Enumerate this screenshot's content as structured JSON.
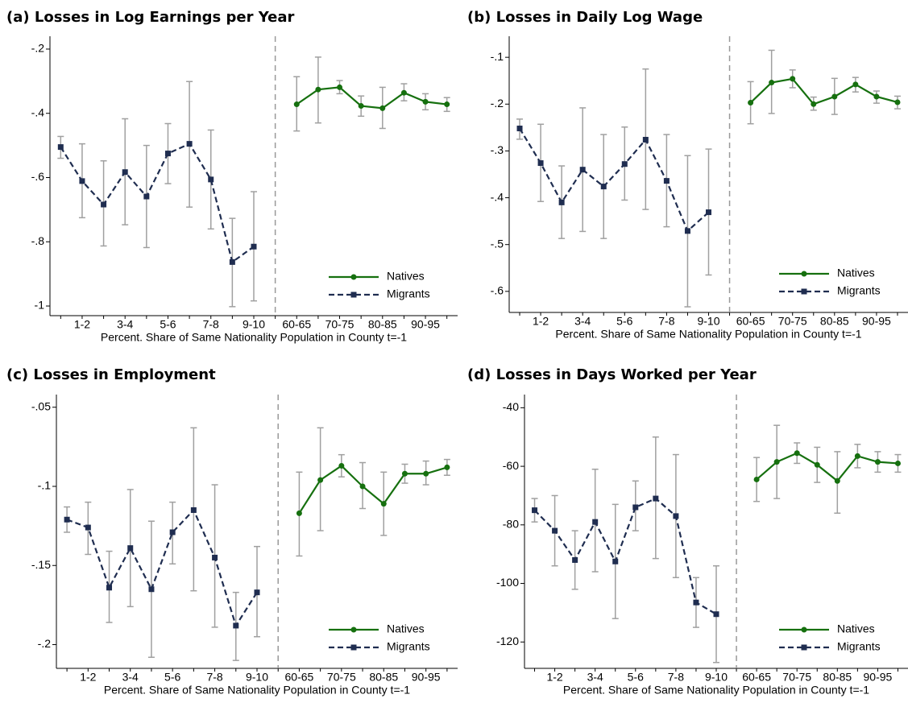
{
  "chart_data": [
    {
      "type": "line",
      "title": "(a) Losses in Log Earnings per Year",
      "xlabel": "Percent. Share of Same Nationality Population in County t=-1",
      "categories": [
        null,
        "1-2",
        null,
        "3-4",
        null,
        "5-6",
        null,
        "7-8",
        null,
        "9-10",
        null,
        "60-65",
        null,
        "70-75",
        null,
        "80-85",
        null,
        "90-95",
        null
      ],
      "series": [
        {
          "name": "Natives",
          "color": "#16700f",
          "style": "solid",
          "marker": "circle",
          "values": [
            null,
            null,
            null,
            null,
            null,
            null,
            null,
            null,
            null,
            null,
            null,
            -0.372,
            -0.326,
            -0.319,
            -0.377,
            -0.384,
            -0.336,
            -0.364,
            -0.372
          ],
          "upper": [
            null,
            null,
            null,
            null,
            null,
            null,
            null,
            null,
            null,
            null,
            null,
            -0.286,
            -0.225,
            -0.298,
            -0.346,
            -0.319,
            -0.308,
            -0.339,
            -0.351
          ],
          "lower": [
            null,
            null,
            null,
            null,
            null,
            null,
            null,
            null,
            null,
            null,
            null,
            -0.455,
            -0.43,
            -0.339,
            -0.409,
            -0.447,
            -0.361,
            -0.389,
            -0.394
          ]
        },
        {
          "name": "Migrants",
          "color": "#1f2d50",
          "style": "dashed",
          "marker": "square",
          "values": [
            -0.505,
            -0.611,
            -0.684,
            -0.583,
            -0.659,
            -0.525,
            -0.495,
            -0.606,
            -0.863,
            -0.815,
            null,
            null,
            null,
            null,
            null,
            null,
            null,
            null,
            null
          ],
          "upper": [
            -0.472,
            -0.495,
            -0.548,
            -0.417,
            -0.5,
            -0.432,
            -0.301,
            -0.452,
            -0.727,
            -0.644,
            null,
            null,
            null,
            null,
            null,
            null,
            null,
            null,
            null
          ],
          "lower": [
            -0.54,
            -0.725,
            -0.813,
            -0.747,
            -0.818,
            -0.619,
            -0.692,
            -0.76,
            -1.002,
            -0.984,
            null,
            null,
            null,
            null,
            null,
            null,
            null,
            null,
            null
          ]
        }
      ],
      "ylim": [
        -1.03,
        -0.16
      ],
      "yticks": [
        {
          "value": -1,
          "label": "-1"
        },
        {
          "value": -0.8,
          "label": "-.8"
        },
        {
          "value": -0.6,
          "label": "-.6"
        },
        {
          "value": -0.4,
          "label": "-.4"
        },
        {
          "value": -0.2,
          "label": "-.2"
        }
      ],
      "legend": "lower right"
    },
    {
      "type": "line",
      "title": "(b) Losses in Daily Log Wage",
      "xlabel": "Percent. Share of Same Nationality Population in County t=-1",
      "categories": [
        null,
        "1-2",
        null,
        "3-4",
        null,
        "5-6",
        null,
        "7-8",
        null,
        "9-10",
        null,
        "60-65",
        null,
        "70-75",
        null,
        "80-85",
        null,
        "90-95",
        null
      ],
      "series": [
        {
          "name": "Natives",
          "color": "#16700f",
          "style": "solid",
          "marker": "circle",
          "values": [
            null,
            null,
            null,
            null,
            null,
            null,
            null,
            null,
            null,
            null,
            null,
            -0.197,
            -0.154,
            -0.146,
            -0.2,
            -0.184,
            -0.158,
            -0.184,
            -0.196
          ],
          "upper": [
            null,
            null,
            null,
            null,
            null,
            null,
            null,
            null,
            null,
            null,
            null,
            -0.152,
            -0.085,
            -0.127,
            -0.185,
            -0.145,
            -0.143,
            -0.172,
            -0.183
          ],
          "lower": [
            null,
            null,
            null,
            null,
            null,
            null,
            null,
            null,
            null,
            null,
            null,
            -0.242,
            -0.22,
            -0.165,
            -0.213,
            -0.222,
            -0.174,
            -0.198,
            -0.21
          ]
        },
        {
          "name": "Migrants",
          "color": "#1f2d50",
          "style": "dashed",
          "marker": "square",
          "values": [
            -0.252,
            -0.326,
            -0.41,
            -0.34,
            -0.376,
            -0.328,
            -0.276,
            -0.364,
            -0.471,
            -0.431,
            null,
            null,
            null,
            null,
            null,
            null,
            null,
            null,
            null
          ],
          "upper": [
            -0.232,
            -0.243,
            -0.332,
            -0.208,
            -0.265,
            -0.249,
            -0.125,
            -0.265,
            -0.31,
            -0.296,
            null,
            null,
            null,
            null,
            null,
            null,
            null,
            null,
            null
          ],
          "lower": [
            -0.275,
            -0.408,
            -0.487,
            -0.472,
            -0.487,
            -0.405,
            -0.425,
            -0.462,
            -0.633,
            -0.565,
            null,
            null,
            null,
            null,
            null,
            null,
            null,
            null,
            null
          ]
        }
      ],
      "ylim": [
        -0.645,
        -0.055
      ],
      "yticks": [
        {
          "value": -0.6,
          "label": "-.6"
        },
        {
          "value": -0.5,
          "label": "-.5"
        },
        {
          "value": -0.4,
          "label": "-.4"
        },
        {
          "value": -0.3,
          "label": "-.3"
        },
        {
          "value": -0.2,
          "label": "-.2"
        },
        {
          "value": -0.1,
          "label": "-.1"
        }
      ],
      "legend": "lower right"
    },
    {
      "type": "line",
      "title": "(c) Losses in Employment",
      "xlabel": "Percent. Share of Same Nationality Population in County t=-1",
      "categories": [
        null,
        "1-2",
        null,
        "3-4",
        null,
        "5-6",
        null,
        "7-8",
        null,
        "9-10",
        null,
        "60-65",
        null,
        "70-75",
        null,
        "80-85",
        null,
        "90-95",
        null
      ],
      "series": [
        {
          "name": "Natives",
          "color": "#16700f",
          "style": "solid",
          "marker": "circle",
          "values": [
            null,
            null,
            null,
            null,
            null,
            null,
            null,
            null,
            null,
            null,
            null,
            -0.117,
            -0.096,
            -0.087,
            -0.1,
            -0.111,
            -0.092,
            -0.092,
            -0.088
          ],
          "upper": [
            null,
            null,
            null,
            null,
            null,
            null,
            null,
            null,
            null,
            null,
            null,
            -0.091,
            -0.063,
            -0.08,
            -0.085,
            -0.091,
            -0.086,
            -0.084,
            -0.083
          ],
          "lower": [
            null,
            null,
            null,
            null,
            null,
            null,
            null,
            null,
            null,
            null,
            null,
            -0.144,
            -0.128,
            -0.094,
            -0.114,
            -0.131,
            -0.098,
            -0.099,
            -0.093
          ]
        },
        {
          "name": "Migrants",
          "color": "#1f2d50",
          "style": "dashed",
          "marker": "square",
          "values": [
            -0.121,
            -0.126,
            -0.164,
            -0.139,
            -0.165,
            -0.129,
            -0.115,
            -0.145,
            -0.188,
            -0.167,
            null,
            null,
            null,
            null,
            null,
            null,
            null,
            null,
            null
          ],
          "upper": [
            -0.113,
            -0.11,
            -0.141,
            -0.102,
            -0.122,
            -0.11,
            -0.063,
            -0.099,
            -0.167,
            -0.138,
            null,
            null,
            null,
            null,
            null,
            null,
            null,
            null,
            null
          ],
          "lower": [
            -0.129,
            -0.143,
            -0.186,
            -0.176,
            -0.208,
            -0.149,
            -0.166,
            -0.189,
            -0.21,
            -0.195,
            null,
            null,
            null,
            null,
            null,
            null,
            null,
            null,
            null
          ]
        }
      ],
      "ylim": [
        -0.215,
        -0.042
      ],
      "yticks": [
        {
          "value": -0.2,
          "label": "-.2"
        },
        {
          "value": -0.15,
          "label": "-.15"
        },
        {
          "value": -0.1,
          "label": "-.1"
        },
        {
          "value": -0.05,
          "label": "-.05"
        }
      ],
      "legend": "lower right"
    },
    {
      "type": "line",
      "title": "(d) Losses in Days Worked per Year",
      "xlabel": "Percent. Share of Same Nationality Population in County t=-1",
      "categories": [
        null,
        "1-2",
        null,
        "3-4",
        null,
        "5-6",
        null,
        "7-8",
        null,
        "9-10",
        null,
        "60-65",
        null,
        "70-75",
        null,
        "80-85",
        null,
        "90-95",
        null
      ],
      "series": [
        {
          "name": "Natives",
          "color": "#16700f",
          "style": "solid",
          "marker": "circle",
          "values": [
            null,
            null,
            null,
            null,
            null,
            null,
            null,
            null,
            null,
            null,
            null,
            -64.5,
            -58.5,
            -55.5,
            -59.5,
            -65,
            -56.5,
            -58.5,
            -59
          ],
          "upper": [
            null,
            null,
            null,
            null,
            null,
            null,
            null,
            null,
            null,
            null,
            null,
            -57,
            -46,
            -52,
            -53.5,
            -55,
            -52.5,
            -55,
            -56
          ],
          "lower": [
            null,
            null,
            null,
            null,
            null,
            null,
            null,
            null,
            null,
            null,
            null,
            -72,
            -71,
            -59,
            -65.5,
            -76,
            -60.5,
            -62,
            -62
          ]
        },
        {
          "name": "Migrants",
          "color": "#1f2d50",
          "style": "dashed",
          "marker": "square",
          "values": [
            -75,
            -82,
            -92,
            -79,
            -92.5,
            -74,
            -71,
            -77,
            -106.5,
            -110.5,
            null,
            null,
            null,
            null,
            null,
            null,
            null,
            null,
            null
          ],
          "upper": [
            -71,
            -70,
            -82,
            -61,
            -73,
            -65,
            -50,
            -56,
            -98,
            -94,
            null,
            null,
            null,
            null,
            null,
            null,
            null,
            null,
            null
          ],
          "lower": [
            -79,
            -94,
            -102,
            -96,
            -112,
            -82,
            -91.5,
            -98,
            -115,
            -127,
            null,
            null,
            null,
            null,
            null,
            null,
            null,
            null,
            null
          ]
        }
      ],
      "ylim": [
        -129,
        -35.5
      ],
      "yticks": [
        -120,
        -100,
        -80,
        -60,
        -40
      ],
      "legend": "lower right"
    }
  ]
}
